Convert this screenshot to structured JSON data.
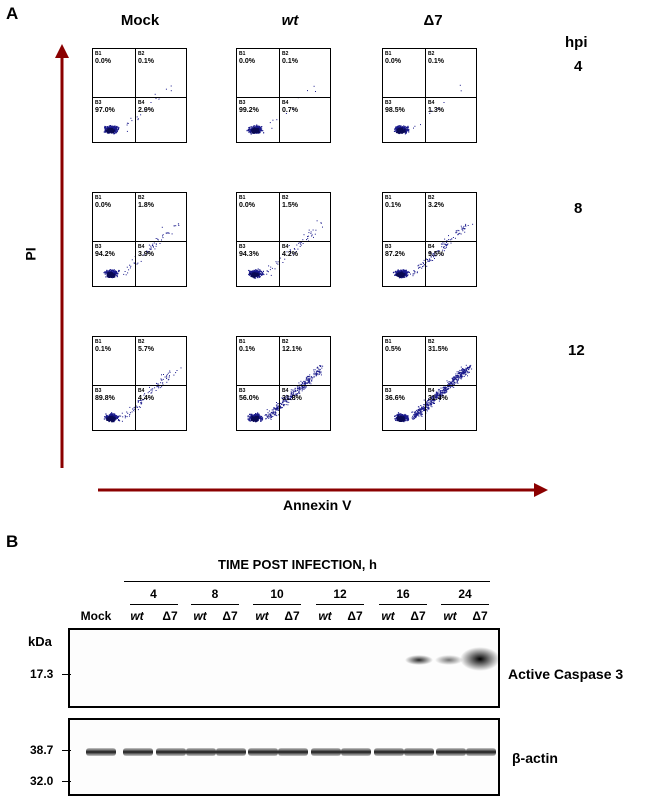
{
  "panel_a": {
    "letter": "A",
    "columns": [
      "Mock",
      "wt",
      "Δ7"
    ],
    "hpi_label": "hpi",
    "rows": [
      "4",
      "8",
      "12"
    ],
    "y_axis_label": "PI",
    "x_axis_label": "Annexin V",
    "quadrant_labels": [
      "B1",
      "B2",
      "B3",
      "B4"
    ],
    "plots": [
      [
        {
          "b1": "0.0%",
          "b2": "0.1%",
          "b3": "97.0%",
          "b4": "2.9%"
        },
        {
          "b1": "0.0%",
          "b2": "0.1%",
          "b3": "99.2%",
          "b4": "0.7%"
        },
        {
          "b1": "0.0%",
          "b2": "0.1%",
          "b3": "98.5%",
          "b4": "1.3%"
        }
      ],
      [
        {
          "b1": "0.0%",
          "b2": "1.8%",
          "b3": "94.2%",
          "b4": "3.9%"
        },
        {
          "b1": "0.0%",
          "b2": "1.5%",
          "b3": "94.3%",
          "b4": "4.2%"
        },
        {
          "b1": "0.1%",
          "b2": "3.2%",
          "b3": "87.2%",
          "b4": "9.5%"
        }
      ],
      [
        {
          "b1": "0.1%",
          "b2": "5.7%",
          "b3": "89.8%",
          "b4": "4.4%"
        },
        {
          "b1": "0.1%",
          "b2": "12.1%",
          "b3": "56.0%",
          "b4": "31.8%"
        },
        {
          "b1": "0.5%",
          "b2": "31.5%",
          "b3": "36.6%",
          "b4": "31.4%"
        }
      ]
    ],
    "dot_color": "#1a1a8c",
    "arrow_color": "#8b0000"
  },
  "panel_b": {
    "letter": "B",
    "header": "TIME POST INFECTION, h",
    "timepoints": [
      "4",
      "8",
      "10",
      "12",
      "16",
      "24"
    ],
    "lanes": [
      "Mock",
      "wt",
      "Δ7",
      "wt",
      "Δ7",
      "wt",
      "Δ7",
      "wt",
      "Δ7",
      "wt",
      "Δ7",
      "wt",
      "Δ7"
    ],
    "kda_label": "kDa",
    "markers": [
      "17.3",
      "38.7",
      "32.0"
    ],
    "blot1_label": "Active Caspase 3",
    "blot2_label": "β-actin"
  }
}
